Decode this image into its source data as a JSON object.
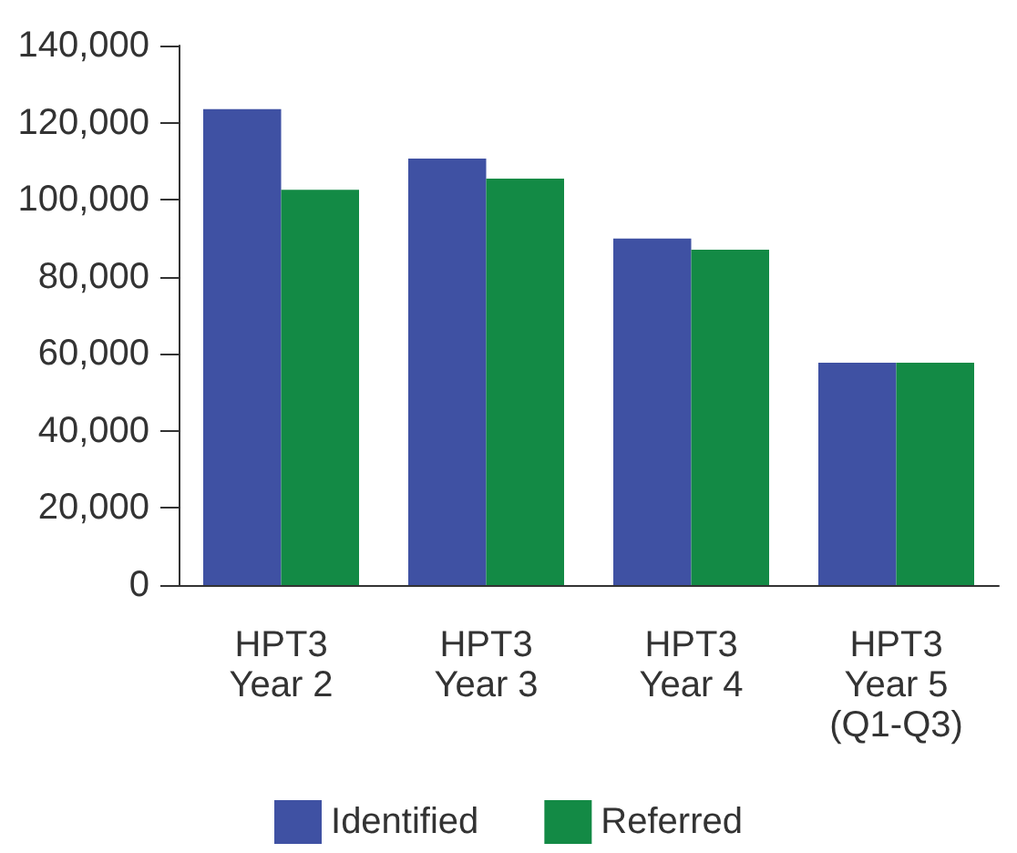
{
  "chart_data": {
    "type": "bar",
    "categories": [
      "HPT3\nYear 2",
      "HPT3\nYear 3",
      "HPT3\nYear 4",
      "HPT3\nYear 5\n(Q1-Q3)"
    ],
    "series": [
      {
        "name": "Identified",
        "color": "#3f51a3",
        "values": [
          123500,
          110700,
          89900,
          57700
        ]
      },
      {
        "name": "Referred",
        "color": "#138a45",
        "values": [
          102600,
          105500,
          87000,
          57700
        ]
      }
    ],
    "ylim": [
      0,
      140000
    ],
    "yticks": [
      {
        "value": 0,
        "label": "0"
      },
      {
        "value": 20000,
        "label": "20,000"
      },
      {
        "value": 40000,
        "label": "40,000"
      },
      {
        "value": 60000,
        "label": "60,000"
      },
      {
        "value": 80000,
        "label": "80,000"
      },
      {
        "value": 100000,
        "label": "100,000"
      },
      {
        "value": 120000,
        "label": "120,000"
      },
      {
        "value": 140000,
        "label": "140,000"
      }
    ],
    "grid": false,
    "legend": "bottom"
  }
}
